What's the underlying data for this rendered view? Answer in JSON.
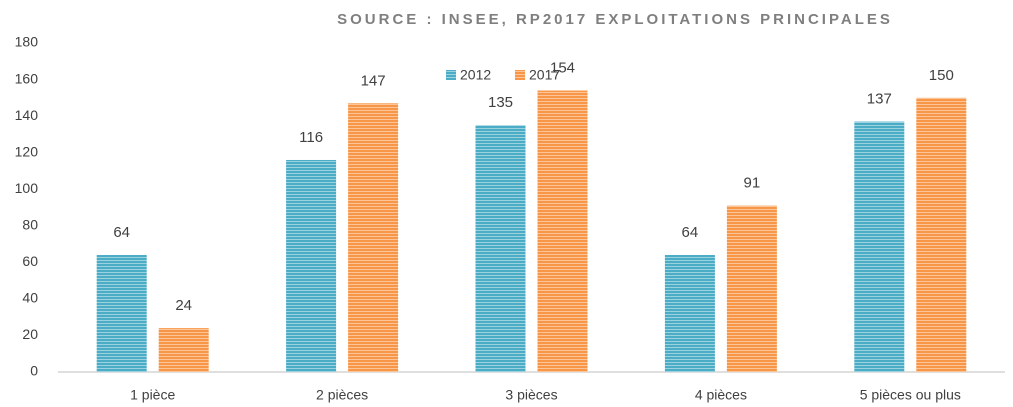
{
  "chart_data": {
    "type": "bar",
    "title": "SOURCE : INSEE, RP2017 EXPLOITATIONS PRINCIPALES",
    "categories": [
      "1 pièce",
      "2 pièces",
      "3 pièces",
      "4 pièces",
      "5 pièces ou plus"
    ],
    "series": [
      {
        "name": "2012",
        "color": "#4bacc6",
        "values": [
          64,
          116,
          135,
          64,
          137
        ]
      },
      {
        "name": "2017",
        "color": "#f79646",
        "values": [
          24,
          147,
          154,
          91,
          150
        ]
      }
    ],
    "ylim": [
      0,
      180
    ],
    "yticks": [
      0,
      20,
      40,
      60,
      80,
      100,
      120,
      140,
      160,
      180
    ],
    "grid": false,
    "legend": "top"
  }
}
